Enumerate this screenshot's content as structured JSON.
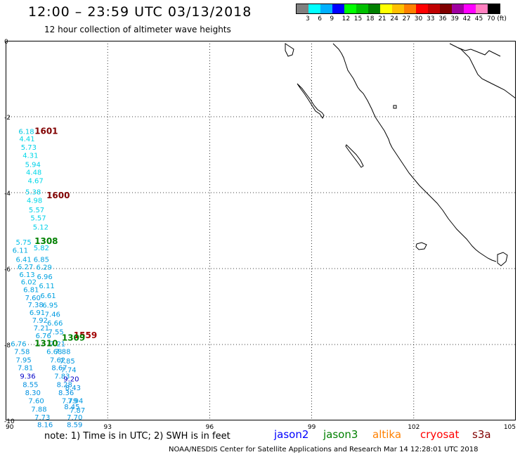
{
  "header": {
    "title": "12:00 – 23:59 UTC 03/13/2018",
    "subtitle": "12 hour collection of altimeter wave heights"
  },
  "color_scale": {
    "colors": [
      "#808080",
      "#00ffff",
      "#00b0ff",
      "#0000ff",
      "#00ff00",
      "#00c000",
      "#008000",
      "#ffff00",
      "#ffc000",
      "#ff8000",
      "#ff0000",
      "#c00000",
      "#800000",
      "#a000a0",
      "#ff00ff",
      "#ff80c0",
      "#000000"
    ],
    "labels": [
      "3",
      "6",
      "9",
      "12",
      "15",
      "18",
      "21",
      "24",
      "27",
      "30",
      "33",
      "36",
      "39",
      "42",
      "45",
      "70 (ft)"
    ]
  },
  "map": {
    "x_ticks": [
      "90",
      "93",
      "96",
      "99",
      "102",
      "105"
    ],
    "y_ticks": [
      "0",
      "-2",
      "-4",
      "-6",
      "-8",
      "-10"
    ],
    "xlim": [
      90,
      105
    ],
    "ylim": [
      -10,
      0
    ],
    "observations": [
      {
        "v": "6.18",
        "lon": 90.38,
        "lat": -2.45,
        "c": "#00c8e0"
      },
      {
        "v": "4.41",
        "lon": 90.4,
        "lat": -2.65,
        "c": "#00d8e8"
      },
      {
        "v": "5.73",
        "lon": 90.45,
        "lat": -2.87,
        "c": "#00d0e8"
      },
      {
        "v": "4.31",
        "lon": 90.5,
        "lat": -3.08,
        "c": "#00d8e8"
      },
      {
        "v": "5.94",
        "lon": 90.57,
        "lat": -3.32,
        "c": "#00d0e8"
      },
      {
        "v": "4.48",
        "lon": 90.6,
        "lat": -3.53,
        "c": "#00d8e8"
      },
      {
        "v": "4.67",
        "lon": 90.65,
        "lat": -3.75,
        "c": "#00d8e8"
      },
      {
        "v": "5.38",
        "lon": 90.58,
        "lat": -4.05,
        "c": "#00d0e8"
      },
      {
        "v": "4.98",
        "lon": 90.62,
        "lat": -4.27,
        "c": "#00d8e8"
      },
      {
        "v": "5.57",
        "lon": 90.68,
        "lat": -4.52,
        "c": "#00d0e8"
      },
      {
        "v": "5.57",
        "lon": 90.73,
        "lat": -4.73,
        "c": "#00d0e8"
      },
      {
        "v": "5.12",
        "lon": 90.8,
        "lat": -4.97,
        "c": "#00d0e8"
      },
      {
        "v": "5.75",
        "lon": 90.3,
        "lat": -5.37,
        "c": "#00c0e8"
      },
      {
        "v": "5.82",
        "lon": 90.82,
        "lat": -5.52,
        "c": "#00c0e8"
      },
      {
        "v": "6.11",
        "lon": 90.2,
        "lat": -5.58,
        "c": "#00a8e0"
      },
      {
        "v": "6.41",
        "lon": 90.3,
        "lat": -5.82,
        "c": "#00a8e0"
      },
      {
        "v": "6.85",
        "lon": 90.82,
        "lat": -5.82,
        "c": "#00a0e0"
      },
      {
        "v": "6.27",
        "lon": 90.35,
        "lat": -6.02,
        "c": "#00a8e0"
      },
      {
        "v": "6.29",
        "lon": 90.9,
        "lat": -6.03,
        "c": "#00a8e0"
      },
      {
        "v": "6.13",
        "lon": 90.4,
        "lat": -6.22,
        "c": "#00a8e0"
      },
      {
        "v": "6.96",
        "lon": 90.92,
        "lat": -6.28,
        "c": "#00a0e0"
      },
      {
        "v": "6.02",
        "lon": 90.45,
        "lat": -6.42,
        "c": "#00a8e0"
      },
      {
        "v": "6.11",
        "lon": 90.98,
        "lat": -6.52,
        "c": "#00a8e0"
      },
      {
        "v": "6.81",
        "lon": 90.52,
        "lat": -6.62,
        "c": "#00a0e0"
      },
      {
        "v": "6.61",
        "lon": 91.02,
        "lat": -6.78,
        "c": "#00a0e0"
      },
      {
        "v": "7.60",
        "lon": 90.57,
        "lat": -6.83,
        "c": "#0098e0"
      },
      {
        "v": "7.38",
        "lon": 90.65,
        "lat": -7.02,
        "c": "#0098e0"
      },
      {
        "v": "6.95",
        "lon": 91.08,
        "lat": -7.03,
        "c": "#00a0e0"
      },
      {
        "v": "6.91",
        "lon": 90.7,
        "lat": -7.22,
        "c": "#00a0e0"
      },
      {
        "v": "7.46",
        "lon": 91.15,
        "lat": -7.27,
        "c": "#0098e0"
      },
      {
        "v": "7.92",
        "lon": 90.78,
        "lat": -7.43,
        "c": "#0098e0"
      },
      {
        "v": "6.66",
        "lon": 91.22,
        "lat": -7.5,
        "c": "#00a0e0"
      },
      {
        "v": "7.21",
        "lon": 90.82,
        "lat": -7.63,
        "c": "#0098e0"
      },
      {
        "v": "7.55",
        "lon": 91.25,
        "lat": -7.73,
        "c": "#0098e0"
      },
      {
        "v": "6.76",
        "lon": 90.88,
        "lat": -7.83,
        "c": "#00a0e0"
      },
      {
        "v": "6.76",
        "lon": 90.15,
        "lat": -8.05,
        "c": "#00a0e0"
      },
      {
        "v": "7.21",
        "lon": 91.3,
        "lat": -8.05,
        "c": "#0098e0"
      },
      {
        "v": "7.58",
        "lon": 90.25,
        "lat": -8.25,
        "c": "#0098e0"
      },
      {
        "v": "6.68",
        "lon": 91.2,
        "lat": -8.25,
        "c": "#00a0e0"
      },
      {
        "v": "7.88",
        "lon": 91.45,
        "lat": -8.25,
        "c": "#0098e0"
      },
      {
        "v": "7.95",
        "lon": 90.3,
        "lat": -8.47,
        "c": "#0098e0"
      },
      {
        "v": "7.62",
        "lon": 91.3,
        "lat": -8.47,
        "c": "#0098e0"
      },
      {
        "v": "7.85",
        "lon": 91.58,
        "lat": -8.5,
        "c": "#0098e0"
      },
      {
        "v": "7.81",
        "lon": 90.35,
        "lat": -8.68,
        "c": "#0098e0"
      },
      {
        "v": "8.67",
        "lon": 91.35,
        "lat": -8.68,
        "c": "#0090e0"
      },
      {
        "v": "7.74",
        "lon": 91.62,
        "lat": -8.73,
        "c": "#0098e0"
      },
      {
        "v": "9.36",
        "lon": 90.42,
        "lat": -8.9,
        "c": "#0000c8"
      },
      {
        "v": "7.83",
        "lon": 91.43,
        "lat": -8.9,
        "c": "#0098e0"
      },
      {
        "v": "9.20",
        "lon": 91.7,
        "lat": -8.97,
        "c": "#0000c8"
      },
      {
        "v": "8.55",
        "lon": 90.5,
        "lat": -9.12,
        "c": "#0090e0"
      },
      {
        "v": "8.28",
        "lon": 91.5,
        "lat": -9.12,
        "c": "#0090e0"
      },
      {
        "v": "8.43",
        "lon": 91.75,
        "lat": -9.2,
        "c": "#0090e0"
      },
      {
        "v": "8.30",
        "lon": 90.57,
        "lat": -9.33,
        "c": "#0090e0"
      },
      {
        "v": "8.36",
        "lon": 91.55,
        "lat": -9.33,
        "c": "#0090e0"
      },
      {
        "v": "7.60",
        "lon": 90.67,
        "lat": -9.55,
        "c": "#0098e0"
      },
      {
        "v": "7.79",
        "lon": 91.65,
        "lat": -9.55,
        "c": "#0098e0"
      },
      {
        "v": "7.94",
        "lon": 91.82,
        "lat": -9.55,
        "c": "#0098e0"
      },
      {
        "v": "7.88",
        "lon": 90.75,
        "lat": -9.77,
        "c": "#0098e0"
      },
      {
        "v": "8.45",
        "lon": 91.72,
        "lat": -9.7,
        "c": "#0090e0"
      },
      {
        "v": "7.87",
        "lon": 91.88,
        "lat": -9.8,
        "c": "#0098e0"
      },
      {
        "v": "7.73",
        "lon": 90.85,
        "lat": -9.98,
        "c": "#0098e0"
      },
      {
        "v": "7.70",
        "lon": 91.8,
        "lat": -9.98,
        "c": "#0098e0"
      },
      {
        "v": "8.16",
        "lon": 90.93,
        "lat": -10.18,
        "c": "#0090e0"
      },
      {
        "v": "8.59",
        "lon": 91.8,
        "lat": -10.18,
        "c": "#0090e0"
      }
    ],
    "pass_times": [
      {
        "t": "1601",
        "lon": 90.85,
        "lat": -2.45,
        "c": "#800000"
      },
      {
        "t": "1600",
        "lon": 91.2,
        "lat": -4.15,
        "c": "#800000"
      },
      {
        "t": "1308",
        "lon": 90.85,
        "lat": -5.35,
        "c": "#008000"
      },
      {
        "t": "1559",
        "lon": 92.0,
        "lat": -7.83,
        "c": "#a00000"
      },
      {
        "t": "1309",
        "lon": 91.65,
        "lat": -7.9,
        "c": "#008000"
      },
      {
        "t": "1310",
        "lon": 90.85,
        "lat": -8.05,
        "c": "#008000"
      }
    ]
  },
  "footer": {
    "note": "note: 1) Time is in UTC; 2) SWH is in feet",
    "satellites": [
      {
        "name": "jason2",
        "color": "#0000ff"
      },
      {
        "name": "jason3",
        "color": "#008000"
      },
      {
        "name": "altika",
        "color": "#ff8000"
      },
      {
        "name": "cryosat",
        "color": "#ff0000"
      },
      {
        "name": "s3a",
        "color": "#800000"
      }
    ],
    "credit": "NOAA/NESDIS Center for Satellite Applications and Research    Mar 14 12:28:01 UTC 2018"
  }
}
